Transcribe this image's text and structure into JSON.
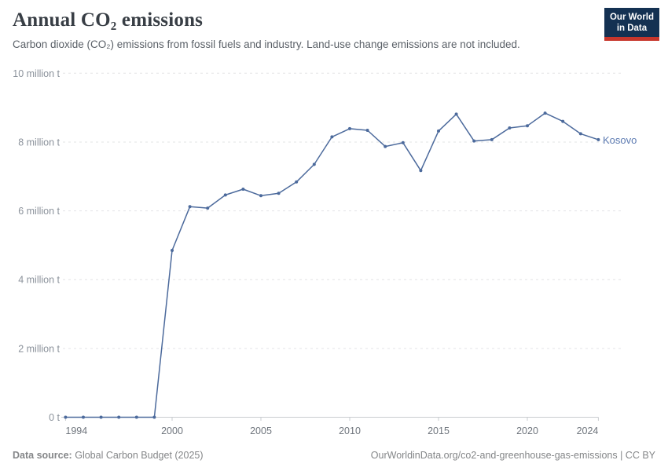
{
  "header": {
    "title": "Annual CO₂ emissions",
    "subtitle": "Carbon dioxide (CO₂) emissions from fossil fuels and industry. Land-use change emissions are not included.",
    "logo": {
      "line1": "Our World",
      "line2": "in Data"
    }
  },
  "chart_data": {
    "type": "line",
    "title": "Annual CO₂ emissions",
    "entity": "Kosovo",
    "unit": "million tonnes of CO₂",
    "x": [
      1994,
      1995,
      1996,
      1997,
      1998,
      1999,
      2000,
      2001,
      2002,
      2003,
      2004,
      2005,
      2006,
      2007,
      2008,
      2009,
      2010,
      2011,
      2012,
      2013,
      2014,
      2015,
      2016,
      2017,
      2018,
      2019,
      2020,
      2021,
      2022,
      2023,
      2024
    ],
    "series": [
      {
        "name": "Kosovo",
        "values": [
          0,
          0,
          0,
          0,
          0,
          0,
          4.85,
          6.12,
          6.08,
          6.46,
          6.63,
          6.44,
          6.51,
          6.84,
          7.35,
          8.15,
          8.39,
          8.34,
          7.87,
          7.98,
          7.17,
          8.32,
          8.81,
          8.03,
          8.07,
          8.41,
          8.47,
          8.84,
          8.6,
          8.24,
          8.07
        ]
      }
    ],
    "xlim": [
      1994,
      2024
    ],
    "ylim": [
      0,
      10
    ],
    "xticks": [
      1994,
      2000,
      2005,
      2010,
      2015,
      2020,
      2024
    ],
    "yticks": [
      {
        "value": 0,
        "label": "0 t"
      },
      {
        "value": 2,
        "label": "2 million t"
      },
      {
        "value": 4,
        "label": "4 million t"
      },
      {
        "value": 6,
        "label": "6 million t"
      },
      {
        "value": 8,
        "label": "8 million t"
      },
      {
        "value": 10,
        "label": "10 million t"
      }
    ],
    "grid": "horizontal-dashed",
    "legend_position": "end-of-line-label",
    "line_color": "#4c6a9c",
    "label_color": "#5d7bb2"
  },
  "footer": {
    "source_label": "Data source:",
    "source": "Global Carbon Budget (2025)",
    "link": "OurWorldinData.org/co2-and-greenhouse-gas-emissions | CC BY"
  }
}
